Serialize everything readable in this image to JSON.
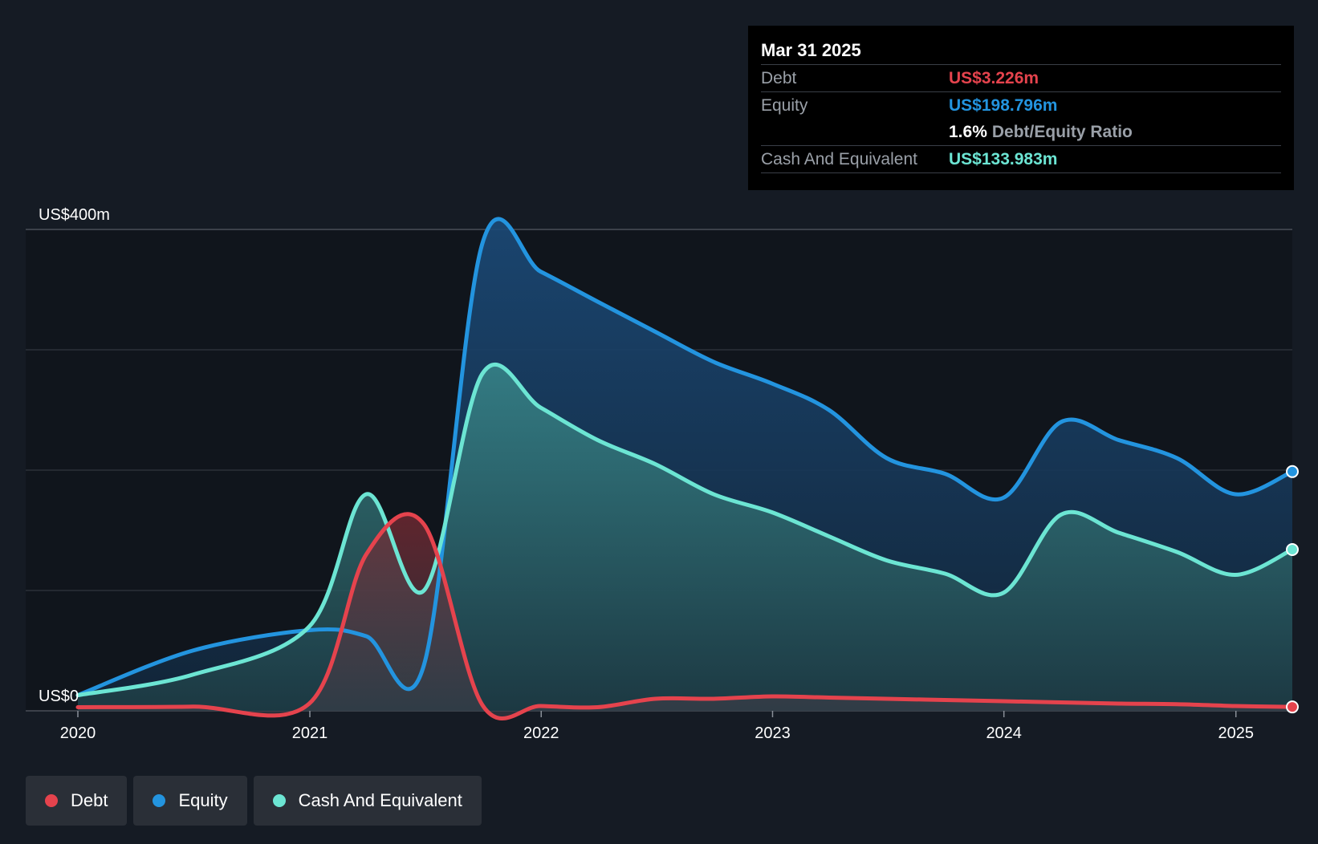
{
  "tooltip": {
    "date": "Mar 31 2025",
    "debt_label": "Debt",
    "debt_value": "US$3.226m",
    "equity_label": "Equity",
    "equity_value": "US$198.796m",
    "ratio_value": "1.6%",
    "ratio_label": "Debt/Equity Ratio",
    "cash_label": "Cash And Equivalent",
    "cash_value": "US$133.983m"
  },
  "legend": [
    {
      "label": "Debt",
      "color": "#e5434d"
    },
    {
      "label": "Equity",
      "color": "#2394df"
    },
    {
      "label": "Cash And Equivalent",
      "color": "#6ce5d3"
    }
  ],
  "chart_data": {
    "type": "area",
    "x_axis": {
      "type": "date",
      "ticks": [
        "2020",
        "2021",
        "2022",
        "2023",
        "2024",
        "2025"
      ],
      "range": [
        "2020-01-01",
        "2025-03-31"
      ]
    },
    "y_axis": {
      "range": [
        0,
        400
      ],
      "unit": "US$m",
      "labeled_ticks": [
        {
          "value": 0,
          "label": "US$0"
        },
        {
          "value": 400,
          "label": "US$400m"
        }
      ],
      "gridlines": [
        0,
        100,
        200,
        300,
        400
      ]
    },
    "grid": true,
    "legend_position": "bottom-left",
    "series": [
      {
        "name": "Debt",
        "color": "#e5434d",
        "points": [
          [
            "2020-01-01",
            3
          ],
          [
            "2020-06-30",
            3.5
          ],
          [
            "2020-12-31",
            6
          ],
          [
            "2021-03-31",
            130
          ],
          [
            "2021-06-30",
            155
          ],
          [
            "2021-09-30",
            5
          ],
          [
            "2021-12-31",
            4
          ],
          [
            "2022-03-31",
            3
          ],
          [
            "2022-06-30",
            10
          ],
          [
            "2022-09-30",
            10
          ],
          [
            "2022-12-31",
            12
          ],
          [
            "2023-03-31",
            11
          ],
          [
            "2023-06-30",
            10
          ],
          [
            "2023-09-30",
            9
          ],
          [
            "2023-12-31",
            8
          ],
          [
            "2024-03-31",
            7
          ],
          [
            "2024-06-30",
            6
          ],
          [
            "2024-09-30",
            5.5
          ],
          [
            "2024-12-31",
            4
          ],
          [
            "2025-03-31",
            3.226
          ]
        ]
      },
      {
        "name": "Equity",
        "color": "#2394df",
        "points": [
          [
            "2020-01-01",
            13
          ],
          [
            "2020-06-30",
            50
          ],
          [
            "2020-12-31",
            67
          ],
          [
            "2021-03-31",
            62
          ],
          [
            "2021-06-30",
            38
          ],
          [
            "2021-09-30",
            388
          ],
          [
            "2021-12-31",
            365
          ],
          [
            "2022-03-31",
            340
          ],
          [
            "2022-06-30",
            315
          ],
          [
            "2022-09-30",
            290
          ],
          [
            "2022-12-31",
            272
          ],
          [
            "2023-03-31",
            250
          ],
          [
            "2023-06-30",
            210
          ],
          [
            "2023-09-30",
            197
          ],
          [
            "2023-12-31",
            177
          ],
          [
            "2024-03-31",
            240
          ],
          [
            "2024-06-30",
            225
          ],
          [
            "2024-09-30",
            210
          ],
          [
            "2024-12-31",
            180
          ],
          [
            "2025-03-31",
            198.796
          ]
        ]
      },
      {
        "name": "Cash And Equivalent",
        "color": "#6ce5d3",
        "points": [
          [
            "2020-01-01",
            13
          ],
          [
            "2020-06-30",
            30
          ],
          [
            "2020-12-31",
            70
          ],
          [
            "2021-03-31",
            180
          ],
          [
            "2021-06-30",
            100
          ],
          [
            "2021-09-30",
            280
          ],
          [
            "2021-12-31",
            252
          ],
          [
            "2022-03-31",
            225
          ],
          [
            "2022-06-30",
            205
          ],
          [
            "2022-09-30",
            180
          ],
          [
            "2022-12-31",
            165
          ],
          [
            "2023-03-31",
            145
          ],
          [
            "2023-06-30",
            125
          ],
          [
            "2023-09-30",
            114
          ],
          [
            "2023-12-31",
            98
          ],
          [
            "2024-03-31",
            163
          ],
          [
            "2024-06-30",
            148
          ],
          [
            "2024-09-30",
            132
          ],
          [
            "2024-12-31",
            113
          ],
          [
            "2025-03-31",
            133.983
          ]
        ]
      }
    ]
  }
}
